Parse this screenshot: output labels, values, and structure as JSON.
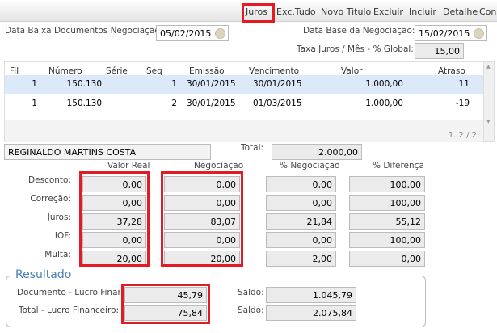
{
  "toolbar": {
    "items": [
      "Juros",
      "Exc.Tudo",
      "Novo Titulo",
      "Excluir",
      "Incluir",
      "Detalhe",
      "Cons"
    ]
  },
  "form": {
    "data_baixa_label": "Data Baixa Documentos Negociação:",
    "data_baixa": "05/02/2015",
    "data_base_label": "Data Base da Negociação:",
    "data_base": "15/02/2015",
    "taxa_label": "Taxa Juros / Mês - % Global:",
    "taxa": "15,00"
  },
  "table": {
    "headers": [
      "Fil",
      "Número",
      "Série",
      "Seq",
      "Emissão",
      "Vencimento",
      "Valor",
      "Atraso"
    ],
    "rows": [
      [
        "1",
        "150.130",
        "",
        "1",
        "30/01/2015",
        "30/01/2015",
        "1.000,00",
        "11"
      ],
      [
        "1",
        "150.130",
        "",
        "2",
        "30/01/2015",
        "01/03/2015",
        "1.000,00",
        "-19"
      ]
    ],
    "pager": "1..2 / 2"
  },
  "client": "REGINALDO MARTINS COSTA",
  "total_label": "Total:",
  "total": "2.000,00",
  "breakdown": {
    "headers": [
      "Valor Real",
      "Negociação",
      "% Negociação",
      "% Diferença"
    ],
    "rows": [
      {
        "label": "Desconto:",
        "values": [
          "0,00",
          "0,00",
          "0,00",
          "100,00"
        ]
      },
      {
        "label": "Correção:",
        "values": [
          "0,00",
          "0,00",
          "0,00",
          "100,00"
        ]
      },
      {
        "label": "Juros:",
        "values": [
          "37,28",
          "83,07",
          "21,84",
          "55,12"
        ]
      },
      {
        "label": "IOF:",
        "values": [
          "0,00",
          "0,00",
          "0,00",
          "100,00"
        ]
      },
      {
        "label": "Multa:",
        "values": [
          "20,00",
          "20,00",
          "2,00",
          "0,00"
        ]
      }
    ]
  },
  "resultado": {
    "title": "Resultado",
    "doc_label": "Documento - Lucro Financeiro:",
    "doc_value": "45,79",
    "total_label": "Total - Lucro Financeiro:",
    "total_value": "75,84",
    "saldo_label": "Saldo:",
    "saldo1": "1.045,79",
    "saldo2": "2.075,84"
  },
  "colors": {
    "highlight": "#e41b23",
    "selected_row": "#dce9f9"
  }
}
